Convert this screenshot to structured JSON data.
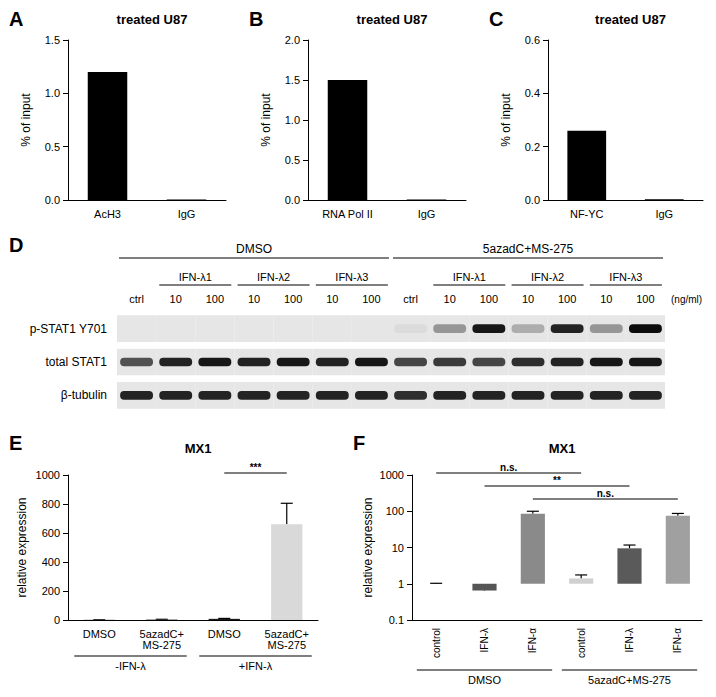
{
  "chart_data": [
    {
      "panel": "A",
      "type": "bar",
      "title": "treated U87",
      "y_label": "% of input",
      "categories": [
        "AcH3",
        "IgG"
      ],
      "values": [
        1.2,
        0.005
      ],
      "color": "#000000",
      "ylim": [
        0,
        1.5
      ],
      "yticks": [
        {
          "value": 0,
          "label": "0.0"
        },
        0.5,
        {
          "value": 1,
          "label": "1.0"
        },
        1.5
      ],
      "grid": false
    },
    {
      "panel": "B",
      "type": "bar",
      "title": "treated U87",
      "y_label": "% of input",
      "categories": [
        "RNA Pol II",
        "IgG"
      ],
      "values": [
        1.5,
        0.005
      ],
      "color": "#000000",
      "ylim": [
        0,
        2
      ],
      "yticks": [
        {
          "value": 0,
          "label": "0.0"
        },
        0.5,
        {
          "value": 1,
          "label": "1.0"
        },
        1.5,
        {
          "value": 2,
          "label": "2.0"
        }
      ],
      "grid": false
    },
    {
      "panel": "C",
      "type": "bar",
      "title": "treated U87",
      "y_label": "% of input",
      "categories": [
        "NF-YC",
        "IgG"
      ],
      "values": [
        0.26,
        0.003
      ],
      "color": "#000000",
      "ylim": [
        0,
        0.6
      ],
      "yticks": [
        {
          "value": 0,
          "label": "0.0"
        },
        0.2,
        0.4,
        0.6
      ],
      "grid": false
    },
    {
      "panel": "D",
      "type": "blot",
      "lanes": [
        "ctrl",
        "10",
        "100",
        "10",
        "100",
        "10",
        "100",
        "ctrl",
        "10",
        "100",
        "10",
        "100",
        "10",
        "100"
      ],
      "unit": "(ng/ml)",
      "groups": [
        {
          "label": "DMSO",
          "from": 0,
          "to": 6
        },
        {
          "label": "5azadC+MS-275",
          "from": 7,
          "to": 13
        }
      ],
      "subgroups": [
        {
          "label": "IFN-λ1",
          "from": 1,
          "to": 2
        },
        {
          "label": "IFN-λ2",
          "from": 3,
          "to": 4
        },
        {
          "label": "IFN-λ3",
          "from": 5,
          "to": 6
        },
        {
          "label": "IFN-λ1",
          "from": 8,
          "to": 9
        },
        {
          "label": "IFN-λ2",
          "from": 10,
          "to": 11
        },
        {
          "label": "IFN-λ3",
          "from": 12,
          "to": 13
        }
      ],
      "rows": [
        {
          "name": "p-STAT1 Y701",
          "values": [
            0,
            0,
            0,
            0,
            0,
            0,
            0,
            0.05,
            0.35,
            0.9,
            0.25,
            0.85,
            0.35,
            0.95
          ]
        },
        {
          "name": "total STAT1",
          "values": [
            0.65,
            0.85,
            0.9,
            0.85,
            0.9,
            0.85,
            0.9,
            0.7,
            0.75,
            0.7,
            0.8,
            0.85,
            0.9,
            0.9
          ]
        },
        {
          "name": "β-tubulin",
          "values": [
            0.85,
            0.85,
            0.85,
            0.85,
            0.85,
            0.85,
            0.85,
            0.8,
            0.85,
            0.85,
            0.85,
            0.85,
            0.85,
            0.85
          ]
        }
      ]
    },
    {
      "panel": "E",
      "type": "bar",
      "title": "MX1",
      "y_label": "relative expression",
      "categories": [
        "DMSO",
        "5azadC+\nMS-275",
        "DMSO",
        "5azadC+\nMS-275"
      ],
      "values": [
        1,
        3,
        8,
        660
      ],
      "errors": [
        0,
        2,
        3,
        145
      ],
      "colors": [
        "#000000",
        "#3a3a3a",
        "#1a1a1a",
        "#d9d9d9"
      ],
      "ylim": [
        0,
        1000
      ],
      "yticks": [
        0,
        200,
        400,
        600,
        800,
        1000
      ],
      "groups": [
        {
          "label": "-IFN-λ",
          "from": 0,
          "to": 1
        },
        {
          "label": "+IFN-λ",
          "from": 2,
          "to": 3
        }
      ],
      "comparisons": [
        {
          "from": 2,
          "to": 3,
          "label": "***"
        }
      ],
      "grid": false
    },
    {
      "panel": "F",
      "type": "bar",
      "title": "MX1",
      "y_label": "relative expression",
      "categories": [
        "control",
        "IFN-λ",
        "IFN-α",
        "control",
        "IFN-λ",
        "IFN-α"
      ],
      "values": [
        1,
        0.65,
        85,
        1.4,
        9.5,
        75
      ],
      "errors": [
        0.03,
        0.12,
        15,
        0.35,
        2.2,
        12
      ],
      "colors": [
        "#000000",
        "#555555",
        "#8a8a8a",
        "#d0d0d0",
        "#5a5a5a",
        "#a0a0a0"
      ],
      "log": "y",
      "ylim": [
        0.1,
        1000
      ],
      "yticks": [
        0.1,
        1,
        10,
        100,
        1000
      ],
      "groups": [
        {
          "label": "DMSO",
          "from": 0,
          "to": 2
        },
        {
          "label": "5azadC+MS-275",
          "from": 3,
          "to": 5
        }
      ],
      "comparisons": [
        {
          "from": 0,
          "to": 3,
          "label": "n.s."
        },
        {
          "from": 1,
          "to": 4,
          "label": "**"
        },
        {
          "from": 2,
          "to": 5,
          "label": "n.s."
        }
      ],
      "grid": false
    }
  ]
}
